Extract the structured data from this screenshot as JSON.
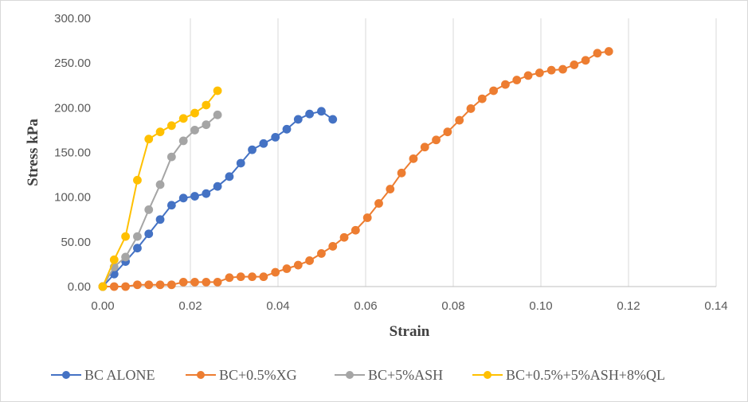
{
  "chart_data": {
    "type": "line",
    "xlabel": "Strain",
    "ylabel": "Stress kPa",
    "xlim": [
      0,
      0.14
    ],
    "ylim": [
      0,
      300
    ],
    "x_ticks": [
      "0.00",
      "0.02",
      "0.04",
      "0.06",
      "0.08",
      "0.10",
      "0.12",
      "0.14"
    ],
    "y_ticks": [
      "0.00",
      "50.00",
      "100.00",
      "150.00",
      "200.00",
      "250.00",
      "300.00"
    ],
    "x_tick_values": [
      0,
      0.02,
      0.04,
      0.06,
      0.08,
      0.1,
      0.12,
      0.14
    ],
    "y_tick_values": [
      0,
      50,
      100,
      150,
      200,
      250,
      300
    ],
    "grid": "vertical",
    "legend_position": "bottom",
    "series": [
      {
        "name": "BC ALONE",
        "color": "#4472C4",
        "x": [
          0,
          0.0026,
          0.0052,
          0.0079,
          0.0105,
          0.0131,
          0.0157,
          0.0184,
          0.021,
          0.0236,
          0.0262,
          0.0289,
          0.0315,
          0.0341,
          0.0367,
          0.0394,
          0.042,
          0.0446,
          0.0472,
          0.0499,
          0.0525
        ],
        "y": [
          0,
          14,
          28,
          43,
          59,
          75,
          91,
          99,
          101,
          104,
          112,
          123,
          138,
          153,
          160,
          167,
          176,
          187,
          193,
          196,
          187
        ]
      },
      {
        "name": "BC+0.5%XG",
        "color": "#ED7D31",
        "x": [
          0,
          0.0026,
          0.0052,
          0.0079,
          0.0105,
          0.0131,
          0.0157,
          0.0184,
          0.021,
          0.0236,
          0.0262,
          0.0289,
          0.0315,
          0.0341,
          0.0367,
          0.0394,
          0.042,
          0.0446,
          0.0472,
          0.0499,
          0.0525,
          0.0551,
          0.0577,
          0.0604,
          0.063,
          0.0656,
          0.0682,
          0.0709,
          0.0735,
          0.0761,
          0.0787,
          0.0814,
          0.084,
          0.0866,
          0.0892,
          0.0919,
          0.0945,
          0.0971,
          0.0997,
          0.1024,
          0.105,
          0.1076,
          0.1102,
          0.1129,
          0.1155
        ],
        "y": [
          0,
          0,
          0,
          2,
          2,
          2,
          2,
          5,
          5,
          5,
          5,
          10,
          11,
          11,
          11,
          16,
          20,
          24,
          29,
          37,
          45,
          55,
          63,
          77,
          93,
          109,
          127,
          143,
          156,
          164,
          173,
          186,
          199,
          210,
          219,
          226,
          231,
          236,
          239,
          242,
          243,
          248,
          253,
          261,
          263
        ]
      },
      {
        "name": "BC+5%ASH",
        "color": "#A5A5A5",
        "x": [
          0,
          0.0026,
          0.0052,
          0.0079,
          0.0105,
          0.0131,
          0.0157,
          0.0184,
          0.021,
          0.0236,
          0.0262
        ],
        "y": [
          0,
          22,
          33,
          56,
          86,
          114,
          145,
          163,
          175,
          181,
          192
        ]
      },
      {
        "name": "BC+0.5%+5%ASH+8%QL",
        "color": "#FFC000",
        "x": [
          0,
          0.0026,
          0.0052,
          0.0079,
          0.0105,
          0.0131,
          0.0157,
          0.0184,
          0.021,
          0.0236,
          0.0262
        ],
        "y": [
          0,
          30,
          56,
          119,
          165,
          173,
          180,
          188,
          194,
          203,
          219
        ]
      }
    ]
  }
}
